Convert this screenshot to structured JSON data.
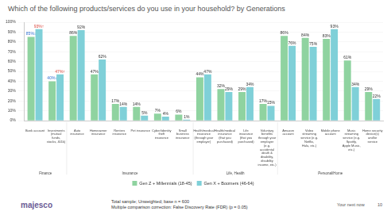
{
  "chart_data": {
    "type": "bar",
    "title": "Which of the following products/services do you use in your household? by Generations",
    "categories": [
      "Bank account",
      "Investments (mutual funds, stocks, 401k)",
      "Auto insurance",
      "Homeowner insurance",
      "Renters insurance",
      "Pet insurance",
      "Cyber/identity theft insurance",
      "Small business insurance",
      "Health/medical insurance (through your employer)",
      "Health/medical insurance (that you purchased)",
      "Life insurance (that you purchased)",
      "Voluntary benefits through your employer (e.g. accidental death & disability, disability income, etc.)",
      "Amazon account",
      "Video streaming service (e.g. Netflix, Hulu, etc.)",
      "Mobile phone account",
      "Music streaming service (e.g. Spotify, Apple Music, etc.)",
      "Home security device(s) and/or service"
    ],
    "series": [
      {
        "name": "Gen Z + Millennials (18-45)",
        "color": "#8fd3a0",
        "values": [
          85,
          40,
          86,
          47,
          17,
          14,
          7,
          6,
          44,
          32,
          29,
          17,
          86,
          84,
          83,
          61,
          29
        ],
        "value_labels": [
          "85%↓",
          "40%↓",
          "86%",
          "47%",
          "17%",
          "14%",
          "7%",
          "6%",
          "44%",
          "32%",
          "29%",
          "17%",
          "86%",
          "84%",
          "83%",
          "61%",
          "29%"
        ]
      },
      {
        "name": "Gen X + Boomers (46-64)",
        "color": "#7fd0d8",
        "values": [
          93,
          47,
          92,
          62,
          14,
          5,
          4,
          1,
          47,
          29,
          34,
          15,
          76,
          75,
          93,
          34,
          22
        ],
        "value_labels": [
          "93%↑",
          "47%↑",
          "92%",
          "62%",
          "14%",
          "5%",
          "4%",
          "1%",
          "47%",
          "29%",
          "34%",
          "15%",
          "76%",
          "75%",
          "93%",
          "34%",
          "22%"
        ]
      }
    ],
    "groups": [
      {
        "name": "Finance",
        "size": 2
      },
      {
        "name": "Insurance",
        "size": 6
      },
      {
        "name": "Life, Health",
        "size": 4
      },
      {
        "name": "Personal/Home",
        "size": 5
      }
    ],
    "ylim": [
      0,
      100
    ],
    "yticks": [
      {
        "value": 0,
        "label": "0%"
      },
      {
        "value": 10,
        "label": "10%"
      },
      {
        "value": 20,
        "label": "20%"
      },
      {
        "value": 30,
        "label": "30%"
      },
      {
        "value": 40,
        "label": "40%"
      },
      {
        "value": 50,
        "label": "50%"
      },
      {
        "value": 60,
        "label": "60%"
      },
      {
        "value": 70,
        "label": "70%"
      },
      {
        "value": 80,
        "label": "80%"
      },
      {
        "value": 90,
        "label": "90%"
      },
      {
        "value": 100,
        "label": "100%"
      }
    ],
    "grid": true,
    "legend": "bottom",
    "data_labels": true
  },
  "footer": {
    "notes": [
      "Total sample; Unweighted; base n = 600",
      "Multiple comparison correction: False Discovery Rate (FDR) (p = 0.05)"
    ],
    "logo": "majesco",
    "tagline": "Your next now",
    "page": "10"
  }
}
